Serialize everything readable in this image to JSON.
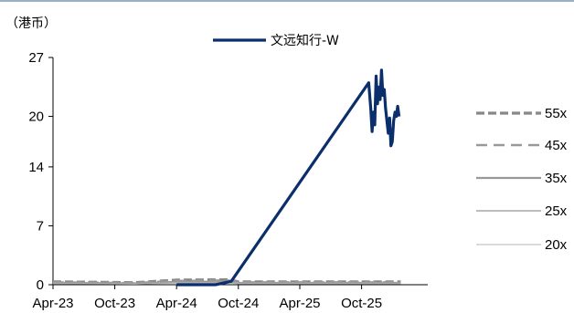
{
  "chart_data": {
    "type": "line",
    "unit_label": "（港币）",
    "ylim": [
      0,
      27
    ],
    "y_ticks": [
      "0",
      "7",
      "14",
      "20",
      "27"
    ],
    "y_tick_values": [
      0,
      7,
      14,
      20,
      27
    ],
    "x_ticks": [
      "Apr-23",
      "Oct-23",
      "Apr-24",
      "Oct-24",
      "Apr-25",
      "Oct-25"
    ],
    "x_tick_dates": [
      "2023-04-01",
      "2023-10-01",
      "2024-04-01",
      "2024-10-01",
      "2025-04-01",
      "2025-10-01"
    ],
    "xlim": [
      "2023-04-01",
      "2026-04-15"
    ],
    "grid": false,
    "series": [
      {
        "name": "文远知行-W",
        "color": "#0b2f6b",
        "style": "solid-thick",
        "points": [
          [
            "2024-04-01",
            0.0
          ],
          [
            "2024-07-25",
            0.0
          ],
          [
            "2024-09-10",
            0.4
          ],
          [
            "2025-10-22",
            24.0
          ],
          [
            "2025-10-28",
            21.0
          ],
          [
            "2025-11-01",
            18.2
          ],
          [
            "2025-11-05",
            20.5
          ],
          [
            "2025-11-09",
            19.0
          ],
          [
            "2025-11-13",
            24.8
          ],
          [
            "2025-11-17",
            21.5
          ],
          [
            "2025-11-21",
            23.5
          ],
          [
            "2025-11-25",
            22.0
          ],
          [
            "2025-11-29",
            25.5
          ],
          [
            "2025-12-03",
            22.5
          ],
          [
            "2025-12-07",
            23.2
          ],
          [
            "2025-12-11",
            21.0
          ],
          [
            "2025-12-15",
            19.5
          ],
          [
            "2025-12-19",
            18.0
          ],
          [
            "2025-12-23",
            19.8
          ],
          [
            "2025-12-27",
            16.5
          ],
          [
            "2025-12-31",
            17.0
          ],
          [
            "2026-01-04",
            19.5
          ],
          [
            "2026-01-08",
            20.5
          ],
          [
            "2026-01-12",
            20.0
          ],
          [
            "2026-01-16",
            21.2
          ],
          [
            "2026-01-20",
            20.0
          ]
        ]
      },
      {
        "name": "55x",
        "color": "#888888",
        "style": "dash-long",
        "points": [
          [
            "2023-04-01",
            0.35
          ],
          [
            "2023-12-01",
            0.25
          ],
          [
            "2024-04-01",
            0.55
          ],
          [
            "2024-09-01",
            0.6
          ],
          [
            "2024-10-01",
            0.35
          ],
          [
            "2026-01-25",
            0.35
          ]
        ]
      },
      {
        "name": "45x",
        "color": "#999999",
        "style": "dash-medium",
        "points": [
          [
            "2023-04-01",
            0.28
          ],
          [
            "2023-12-01",
            0.2
          ],
          [
            "2024-04-01",
            0.45
          ],
          [
            "2024-09-01",
            0.5
          ],
          [
            "2024-10-01",
            0.28
          ],
          [
            "2026-01-25",
            0.28
          ]
        ]
      },
      {
        "name": "35x",
        "color": "#999999",
        "style": "solid-medium",
        "points": [
          [
            "2023-04-01",
            0.22
          ],
          [
            "2023-12-01",
            0.16
          ],
          [
            "2024-04-01",
            0.35
          ],
          [
            "2024-09-01",
            0.38
          ],
          [
            "2024-10-01",
            0.22
          ],
          [
            "2026-01-25",
            0.22
          ]
        ]
      },
      {
        "name": "25x",
        "color": "#a6a6a6",
        "style": "solid-thin",
        "points": [
          [
            "2023-04-01",
            0.16
          ],
          [
            "2023-12-01",
            0.12
          ],
          [
            "2024-04-01",
            0.25
          ],
          [
            "2024-09-01",
            0.27
          ],
          [
            "2024-10-01",
            0.16
          ],
          [
            "2026-01-25",
            0.16
          ]
        ]
      },
      {
        "name": "20x",
        "color": "#b5b5b5",
        "style": "solid-hair",
        "points": [
          [
            "2023-04-01",
            0.12
          ],
          [
            "2023-12-01",
            0.09
          ],
          [
            "2024-04-01",
            0.2
          ],
          [
            "2024-09-01",
            0.22
          ],
          [
            "2024-10-01",
            0.12
          ],
          [
            "2026-01-25",
            0.12
          ]
        ]
      }
    ],
    "legend": {
      "main_placement": "top-center",
      "bands_placement": "right"
    }
  },
  "colors": {
    "top_border": "#9ab0c4",
    "axis": "#000000"
  }
}
